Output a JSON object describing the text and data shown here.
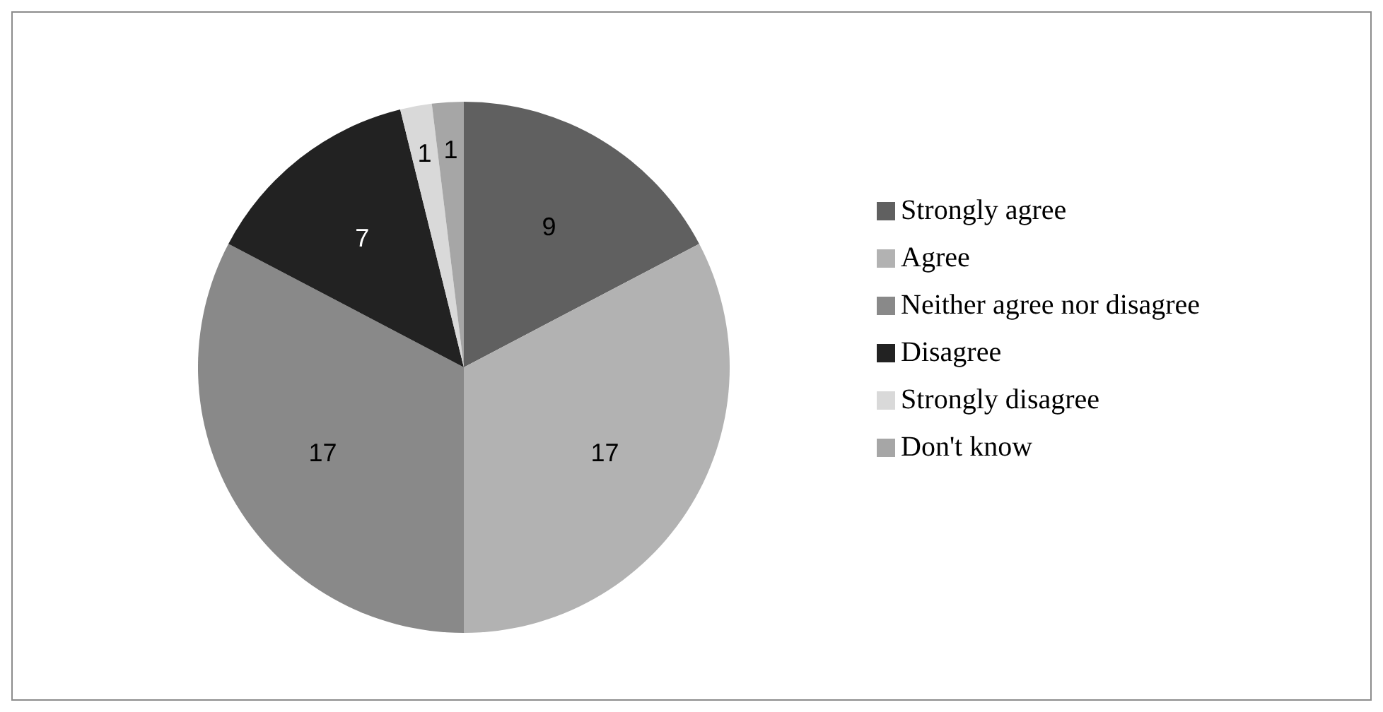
{
  "chart_data": {
    "type": "pie",
    "categories": [
      "Strongly agree",
      "Agree",
      "Neither agree nor disagree",
      "Disagree",
      "Strongly disagree",
      "Don't know"
    ],
    "values": [
      9,
      17,
      17,
      7,
      1,
      1
    ],
    "colors": [
      "#606060",
      "#b2b2b2",
      "#898989",
      "#222222",
      "#d9d9d9",
      "#a6a6a6"
    ],
    "data_labels": true,
    "legend": "right"
  }
}
